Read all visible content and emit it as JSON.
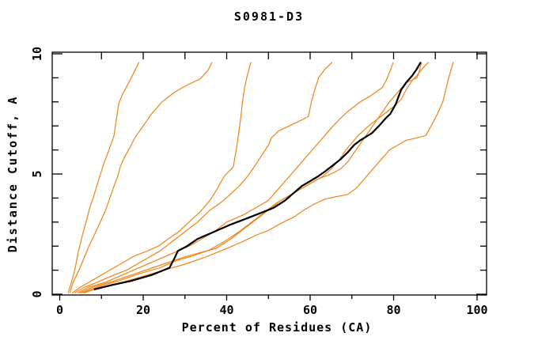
{
  "title": "S0981-D3",
  "chart_data": {
    "type": "line",
    "title": "S0981-D3",
    "xlabel": "Percent of Residues (CA)",
    "ylabel": "Distance Cutoff, A",
    "xlim": [
      0,
      100
    ],
    "ylim": [
      0,
      10
    ],
    "grid": false,
    "legend": "none",
    "x_major_ticks": [
      0,
      20,
      40,
      60,
      80,
      100
    ],
    "x_minor_ticks": [
      10,
      30,
      50,
      70,
      90
    ],
    "x_tick_labels": [
      "0",
      "20",
      "40",
      "60",
      "80",
      "100"
    ],
    "y_major_ticks": [
      0,
      5,
      10
    ],
    "y_minor_ticks": [
      1,
      2,
      3,
      4,
      6,
      7,
      8,
      9
    ],
    "y_tick_labels": [
      "0",
      "5",
      "10"
    ],
    "colors": {
      "highlight_model": "#000000",
      "other_models": "#f08316"
    },
    "series": [
      {
        "name": "orange-curve-1",
        "color": "#f08316",
        "width": 1.2,
        "points": [
          [
            2.0,
            0.05
          ],
          [
            2.8,
            0.5
          ],
          [
            3.6,
            1.0
          ],
          [
            4.5,
            1.8
          ],
          [
            5.5,
            2.5
          ],
          [
            6.3,
            3.0
          ],
          [
            7.2,
            3.6
          ],
          [
            8.0,
            4.0
          ],
          [
            9.6,
            4.9
          ],
          [
            10.5,
            5.4
          ],
          [
            11.8,
            6.0
          ],
          [
            13.0,
            6.6
          ],
          [
            14.1,
            7.9
          ],
          [
            15.0,
            8.3
          ],
          [
            17.0,
            8.95
          ],
          [
            18.0,
            9.3
          ],
          [
            19.0,
            9.65
          ]
        ]
      },
      {
        "name": "orange-curve-2",
        "color": "#f08316",
        "width": 1.2,
        "points": [
          [
            2.4,
            0.05
          ],
          [
            3.2,
            0.5
          ],
          [
            4.6,
            1.0
          ],
          [
            5.8,
            1.5
          ],
          [
            7.0,
            2.0
          ],
          [
            8.4,
            2.5
          ],
          [
            9.7,
            3.0
          ],
          [
            11.0,
            3.5
          ],
          [
            12.0,
            4.0
          ],
          [
            13.0,
            4.5
          ],
          [
            13.9,
            4.9
          ],
          [
            14.5,
            5.3
          ],
          [
            15.5,
            5.7
          ],
          [
            16.5,
            6.0
          ],
          [
            18.0,
            6.5
          ],
          [
            20.0,
            7.0
          ],
          [
            22.0,
            7.5
          ],
          [
            24.5,
            8.0
          ],
          [
            27.5,
            8.4
          ],
          [
            30.5,
            8.7
          ],
          [
            33.6,
            8.95
          ],
          [
            35.5,
            9.3
          ],
          [
            36.5,
            9.65
          ]
        ]
      },
      {
        "name": "orange-curve-3",
        "color": "#f08316",
        "width": 1.2,
        "points": [
          [
            3.0,
            0.05
          ],
          [
            5.0,
            0.3
          ],
          [
            8.0,
            0.6
          ],
          [
            11.0,
            0.9
          ],
          [
            15.0,
            1.3
          ],
          [
            18.0,
            1.6
          ],
          [
            21.0,
            1.8
          ],
          [
            23.6,
            2.0
          ],
          [
            26.0,
            2.3
          ],
          [
            28.5,
            2.6
          ],
          [
            31.0,
            3.0
          ],
          [
            33.5,
            3.4
          ],
          [
            36.0,
            3.9
          ],
          [
            37.8,
            4.4
          ],
          [
            39.4,
            4.9
          ],
          [
            41.6,
            5.3
          ],
          [
            42.3,
            6.0
          ],
          [
            42.8,
            6.6
          ],
          [
            43.2,
            7.1
          ],
          [
            43.8,
            8.0
          ],
          [
            44.3,
            8.6
          ],
          [
            44.8,
            9.0
          ],
          [
            45.8,
            9.65
          ]
        ]
      },
      {
        "name": "orange-curve-4",
        "color": "#f08316",
        "width": 1.2,
        "points": [
          [
            3.5,
            0.05
          ],
          [
            6.0,
            0.3
          ],
          [
            9.0,
            0.5
          ],
          [
            13.0,
            0.8
          ],
          [
            16.0,
            1.0
          ],
          [
            20.0,
            1.4
          ],
          [
            24.0,
            1.8
          ],
          [
            27.0,
            2.2
          ],
          [
            30.0,
            2.6
          ],
          [
            33.0,
            3.0
          ],
          [
            36.0,
            3.5
          ],
          [
            38.5,
            3.8
          ],
          [
            40.5,
            4.1
          ],
          [
            43.0,
            4.5
          ],
          [
            45.0,
            4.9
          ],
          [
            47.0,
            5.4
          ],
          [
            48.5,
            5.8
          ],
          [
            50.0,
            6.2
          ],
          [
            50.7,
            6.5
          ],
          [
            52.5,
            6.8
          ],
          [
            55.0,
            7.0
          ],
          [
            57.5,
            7.2
          ],
          [
            59.6,
            7.4
          ],
          [
            60.3,
            8.0
          ],
          [
            61.1,
            8.5
          ],
          [
            62.0,
            9.0
          ],
          [
            63.5,
            9.35
          ],
          [
            65.3,
            9.65
          ]
        ]
      },
      {
        "name": "orange-curve-5",
        "color": "#f08316",
        "width": 1.2,
        "points": [
          [
            4.2,
            0.05
          ],
          [
            7.0,
            0.3
          ],
          [
            11.0,
            0.5
          ],
          [
            15.0,
            0.8
          ],
          [
            19.0,
            1.1
          ],
          [
            23.0,
            1.4
          ],
          [
            27.0,
            1.7
          ],
          [
            31.0,
            2.0
          ],
          [
            34.0,
            2.3
          ],
          [
            37.0,
            2.6
          ],
          [
            40.0,
            3.0
          ],
          [
            44.0,
            3.3
          ],
          [
            47.0,
            3.6
          ],
          [
            50.0,
            3.9
          ],
          [
            52.0,
            4.3
          ],
          [
            54.0,
            4.7
          ],
          [
            56.0,
            5.1
          ],
          [
            58.0,
            5.5
          ],
          [
            60.0,
            5.9
          ],
          [
            62.0,
            6.3
          ],
          [
            64.0,
            6.7
          ],
          [
            65.5,
            7.0
          ],
          [
            67.2,
            7.3
          ],
          [
            69.0,
            7.6
          ],
          [
            70.5,
            7.8
          ],
          [
            72.0,
            8.0
          ],
          [
            74.0,
            8.2
          ],
          [
            77.3,
            8.6
          ],
          [
            78.5,
            9.0
          ],
          [
            79.3,
            9.35
          ],
          [
            79.9,
            9.65
          ]
        ]
      },
      {
        "name": "orange-curve-6",
        "color": "#f08316",
        "width": 1.2,
        "points": [
          [
            4.7,
            0.05
          ],
          [
            8.0,
            0.3
          ],
          [
            13.0,
            0.55
          ],
          [
            18.0,
            0.85
          ],
          [
            24.0,
            1.2
          ],
          [
            29.0,
            1.5
          ],
          [
            33.0,
            1.7
          ],
          [
            37.4,
            1.9
          ],
          [
            41.0,
            2.3
          ],
          [
            44.0,
            2.7
          ],
          [
            47.0,
            3.1
          ],
          [
            50.0,
            3.5
          ],
          [
            53.0,
            3.9
          ],
          [
            56.0,
            4.2
          ],
          [
            59.0,
            4.5
          ],
          [
            62.0,
            4.8
          ],
          [
            65.0,
            5.0
          ],
          [
            67.2,
            5.2
          ],
          [
            69.0,
            5.5
          ],
          [
            71.0,
            6.0
          ],
          [
            73.0,
            6.5
          ],
          [
            75.0,
            7.0
          ],
          [
            77.0,
            7.5
          ],
          [
            79.0,
            8.0
          ],
          [
            81.0,
            8.4
          ],
          [
            83.0,
            8.8
          ],
          [
            85.6,
            9.0
          ],
          [
            86.3,
            9.35
          ],
          [
            86.7,
            9.65
          ]
        ]
      },
      {
        "name": "orange-curve-7",
        "color": "#f08316",
        "width": 1.2,
        "points": [
          [
            5.2,
            0.05
          ],
          [
            9.0,
            0.3
          ],
          [
            14.0,
            0.55
          ],
          [
            19.0,
            0.85
          ],
          [
            24.0,
            1.1
          ],
          [
            28.0,
            1.4
          ],
          [
            32.0,
            1.6
          ],
          [
            36.0,
            1.85
          ],
          [
            39.5,
            2.2
          ],
          [
            43.0,
            2.6
          ],
          [
            46.0,
            3.0
          ],
          [
            49.0,
            3.4
          ],
          [
            52.0,
            3.8
          ],
          [
            55.0,
            4.1
          ],
          [
            58.0,
            4.4
          ],
          [
            61.0,
            4.7
          ],
          [
            63.0,
            4.9
          ],
          [
            65.0,
            5.2
          ],
          [
            67.0,
            5.6
          ],
          [
            69.0,
            6.1
          ],
          [
            71.5,
            6.6
          ],
          [
            74.0,
            7.0
          ],
          [
            77.0,
            7.4
          ],
          [
            80.0,
            7.8
          ],
          [
            81.8,
            8.1
          ],
          [
            83.0,
            8.5
          ],
          [
            84.5,
            8.9
          ],
          [
            85.6,
            9.1
          ],
          [
            86.5,
            9.3
          ],
          [
            87.5,
            9.5
          ],
          [
            88.4,
            9.65
          ]
        ]
      },
      {
        "name": "orange-curve-8",
        "color": "#f08316",
        "width": 1.2,
        "points": [
          [
            5.7,
            0.05
          ],
          [
            10.0,
            0.3
          ],
          [
            15.0,
            0.5
          ],
          [
            20.0,
            0.75
          ],
          [
            25.0,
            1.0
          ],
          [
            30.0,
            1.25
          ],
          [
            35.0,
            1.55
          ],
          [
            40.0,
            1.9
          ],
          [
            44.0,
            2.2
          ],
          [
            47.0,
            2.45
          ],
          [
            50.0,
            2.65
          ],
          [
            53.0,
            2.95
          ],
          [
            56.0,
            3.2
          ],
          [
            58.5,
            3.5
          ],
          [
            61.0,
            3.75
          ],
          [
            63.5,
            3.95
          ],
          [
            66.0,
            4.05
          ],
          [
            69.0,
            4.15
          ],
          [
            71.0,
            4.4
          ],
          [
            73.0,
            4.8
          ],
          [
            75.0,
            5.2
          ],
          [
            77.0,
            5.6
          ],
          [
            79.0,
            6.0
          ],
          [
            81.0,
            6.2
          ],
          [
            83.0,
            6.4
          ],
          [
            85.5,
            6.5
          ],
          [
            87.7,
            6.6
          ],
          [
            89.0,
            7.0
          ],
          [
            90.5,
            7.5
          ],
          [
            91.8,
            8.0
          ],
          [
            92.5,
            8.5
          ],
          [
            93.2,
            9.0
          ],
          [
            94.3,
            9.65
          ]
        ]
      },
      {
        "name": "black-main-curve",
        "color": "#000000",
        "width": 2.2,
        "points": [
          [
            8.2,
            0.2
          ],
          [
            13.0,
            0.4
          ],
          [
            17.0,
            0.55
          ],
          [
            22.0,
            0.8
          ],
          [
            26.3,
            1.1
          ],
          [
            27.5,
            1.5
          ],
          [
            28.3,
            1.8
          ],
          [
            30.5,
            2.0
          ],
          [
            33.0,
            2.3
          ],
          [
            37.0,
            2.6
          ],
          [
            41.0,
            2.9
          ],
          [
            44.0,
            3.1
          ],
          [
            47.0,
            3.3
          ],
          [
            51.3,
            3.6
          ],
          [
            54.0,
            3.9
          ],
          [
            56.0,
            4.2
          ],
          [
            58.0,
            4.5
          ],
          [
            60.0,
            4.7
          ],
          [
            61.9,
            4.9
          ],
          [
            63.5,
            5.1
          ],
          [
            65.0,
            5.3
          ],
          [
            67.2,
            5.6
          ],
          [
            69.0,
            5.9
          ],
          [
            70.5,
            6.2
          ],
          [
            72.0,
            6.4
          ],
          [
            74.8,
            6.7
          ],
          [
            76.5,
            7.0
          ],
          [
            78.0,
            7.3
          ],
          [
            79.2,
            7.5
          ],
          [
            80.5,
            7.9
          ],
          [
            81.8,
            8.5
          ],
          [
            83.0,
            8.8
          ],
          [
            84.5,
            9.1
          ],
          [
            85.5,
            9.35
          ],
          [
            86.5,
            9.65
          ]
        ]
      }
    ]
  }
}
